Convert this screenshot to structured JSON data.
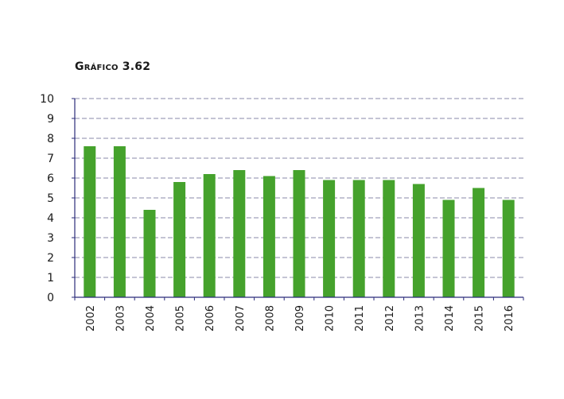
{
  "chart_data": {
    "type": "bar",
    "title": "Gráfico 3.62",
    "xlabel": "",
    "ylabel": "",
    "categories": [
      "2002",
      "2003",
      "2004",
      "2005",
      "2006",
      "2007",
      "2008",
      "2009",
      "2010",
      "2011",
      "2012",
      "2013",
      "2014",
      "2015",
      "2016"
    ],
    "values": [
      7.6,
      7.6,
      4.4,
      5.8,
      6.2,
      6.4,
      6.1,
      6.4,
      5.9,
      5.9,
      5.9,
      5.7,
      4.9,
      5.5,
      4.9
    ],
    "ylim": [
      0,
      10
    ],
    "yticks": [
      0,
      1,
      2,
      3,
      4,
      5,
      6,
      7,
      8,
      9,
      10
    ],
    "grid": true,
    "legend": "none",
    "colors": {
      "bar": "#45a22c",
      "axis": "#2b2b7a",
      "grid": "#8a8aa8"
    }
  }
}
